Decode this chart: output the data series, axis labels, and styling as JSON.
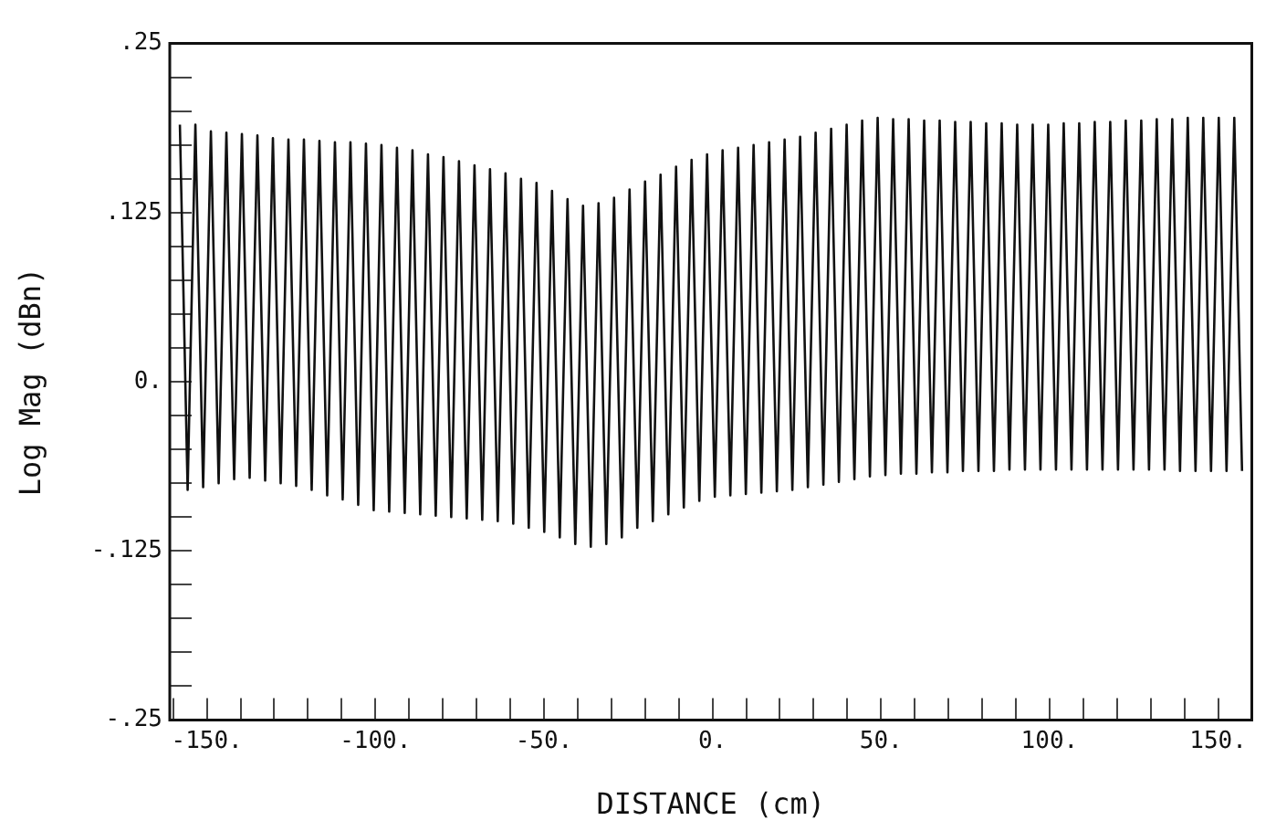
{
  "chart_data": {
    "type": "line",
    "xlabel": "DISTANCE (cm)",
    "ylabel": "Log Mag (dBn)",
    "xlim": [
      -161,
      160
    ],
    "ylim": [
      -0.25,
      0.25
    ],
    "xticks": [
      {
        "value": -160,
        "label": null
      },
      {
        "value": -150,
        "label": "-150."
      },
      {
        "value": -140,
        "label": null
      },
      {
        "value": -130,
        "label": null
      },
      {
        "value": -120,
        "label": null
      },
      {
        "value": -110,
        "label": null
      },
      {
        "value": -100,
        "label": "-100."
      },
      {
        "value": -90,
        "label": null
      },
      {
        "value": -80,
        "label": null
      },
      {
        "value": -70,
        "label": null
      },
      {
        "value": -60,
        "label": null
      },
      {
        "value": -50,
        "label": "-50."
      },
      {
        "value": -40,
        "label": null
      },
      {
        "value": -30,
        "label": null
      },
      {
        "value": -20,
        "label": null
      },
      {
        "value": -10,
        "label": null
      },
      {
        "value": 0,
        "label": "0."
      },
      {
        "value": 10,
        "label": null
      },
      {
        "value": 20,
        "label": null
      },
      {
        "value": 30,
        "label": null
      },
      {
        "value": 40,
        "label": null
      },
      {
        "value": 50,
        "label": "50."
      },
      {
        "value": 60,
        "label": null
      },
      {
        "value": 70,
        "label": null
      },
      {
        "value": 80,
        "label": null
      },
      {
        "value": 90,
        "label": null
      },
      {
        "value": 100,
        "label": "100."
      },
      {
        "value": 110,
        "label": null
      },
      {
        "value": 120,
        "label": null
      },
      {
        "value": 130,
        "label": null
      },
      {
        "value": 140,
        "label": null
      },
      {
        "value": 150,
        "label": "150."
      }
    ],
    "yticks": [
      {
        "value": -0.25,
        "label": "-.25"
      },
      {
        "value": -0.225,
        "label": null
      },
      {
        "value": -0.2,
        "label": null
      },
      {
        "value": -0.175,
        "label": null
      },
      {
        "value": -0.15,
        "label": null
      },
      {
        "value": -0.125,
        "label": "-.125"
      },
      {
        "value": -0.1,
        "label": null
      },
      {
        "value": -0.075,
        "label": null
      },
      {
        "value": -0.05,
        "label": null
      },
      {
        "value": -0.025,
        "label": null
      },
      {
        "value": 0,
        "label": "0."
      },
      {
        "value": 0.025,
        "label": null
      },
      {
        "value": 0.05,
        "label": null
      },
      {
        "value": 0.075,
        "label": null
      },
      {
        "value": 0.1,
        "label": null
      },
      {
        "value": 0.125,
        "label": ".125"
      },
      {
        "value": 0.15,
        "label": null
      },
      {
        "value": 0.175,
        "label": null
      },
      {
        "value": 0.2,
        "label": null
      },
      {
        "value": 0.225,
        "label": null
      },
      {
        "value": 0.25,
        "label": ".25"
      }
    ],
    "grid": false,
    "legend": false,
    "marker": "none",
    "line_style": "solid",
    "series": [
      {
        "color": "#111111",
        "x": [
          -158,
          -155.7,
          -153.4,
          -151.1,
          -148.8,
          -146.5,
          -144.2,
          -141.9,
          -139.6,
          -137.3,
          -135,
          -132.7,
          -130.4,
          -128.1,
          -125.8,
          -123.5,
          -121.2,
          -118.9,
          -116.6,
          -114.3,
          -112,
          -109.7,
          -107.4,
          -105.1,
          -102.8,
          -100.5,
          -98.2,
          -95.9,
          -93.6,
          -91.3,
          -89,
          -86.7,
          -84.4,
          -82.1,
          -79.8,
          -77.5,
          -75.2,
          -72.9,
          -70.6,
          -68.3,
          -66,
          -63.7,
          -61.4,
          -59.1,
          -56.8,
          -54.5,
          -52.2,
          -49.9,
          -47.6,
          -45.3,
          -43,
          -40.7,
          -38.4,
          -36.1,
          -33.8,
          -31.5,
          -29.2,
          -26.9,
          -24.6,
          -22.3,
          -20,
          -17.7,
          -15.4,
          -13.1,
          -10.8,
          -8.5,
          -6.2,
          -3.9,
          -1.6,
          0.7,
          3,
          5.3,
          7.6,
          9.9,
          12.2,
          14.5,
          16.8,
          19.1,
          21.4,
          23.7,
          26,
          28.3,
          30.6,
          32.9,
          35.2,
          37.5,
          39.8,
          42.1,
          44.4,
          46.7,
          49,
          51.3,
          53.6,
          55.9,
          58.2,
          60.5,
          62.8,
          65.1,
          67.4,
          69.7,
          72,
          74.3,
          76.6,
          78.9,
          81.2,
          83.5,
          85.8,
          88.1,
          90.4,
          92.7,
          95,
          97.3,
          99.6,
          101.9,
          104.2,
          106.5,
          108.8,
          111.1,
          113.4,
          115.7,
          118,
          120.3,
          122.6,
          124.9,
          127.2,
          129.5,
          131.8,
          134.1,
          136.4,
          138.7,
          141,
          143.3,
          145.6,
          147.9,
          150.2,
          152.5,
          154.8,
          157.1
        ],
        "values": [
          0.19,
          -0.08,
          0.19,
          -0.078,
          0.185,
          -0.075,
          0.184,
          -0.072,
          0.183,
          -0.071,
          0.182,
          -0.073,
          0.18,
          -0.075,
          0.179,
          -0.077,
          0.179,
          -0.08,
          0.178,
          -0.084,
          0.177,
          -0.087,
          0.177,
          -0.091,
          0.176,
          -0.095,
          0.175,
          -0.096,
          0.173,
          -0.097,
          0.171,
          -0.098,
          0.168,
          -0.099,
          0.166,
          -0.1,
          0.163,
          -0.101,
          0.16,
          -0.102,
          0.157,
          -0.103,
          0.154,
          -0.105,
          0.15,
          -0.108,
          0.147,
          -0.111,
          0.141,
          -0.115,
          0.135,
          -0.12,
          0.13,
          -0.122,
          0.132,
          -0.12,
          0.136,
          -0.115,
          0.142,
          -0.108,
          0.148,
          -0.103,
          0.153,
          -0.098,
          0.159,
          -0.093,
          0.164,
          -0.088,
          0.168,
          -0.085,
          0.171,
          -0.084,
          0.173,
          -0.083,
          0.175,
          -0.082,
          0.177,
          -0.081,
          0.179,
          -0.08,
          0.181,
          -0.078,
          0.184,
          -0.076,
          0.187,
          -0.074,
          0.19,
          -0.072,
          0.193,
          -0.07,
          0.195,
          -0.069,
          0.194,
          -0.068,
          0.194,
          -0.068,
          0.193,
          -0.067,
          0.193,
          -0.067,
          0.192,
          -0.066,
          0.192,
          -0.066,
          0.191,
          -0.066,
          0.191,
          -0.065,
          0.19,
          -0.065,
          0.19,
          -0.065,
          0.19,
          -0.065,
          0.191,
          -0.065,
          0.191,
          -0.065,
          0.192,
          -0.065,
          0.192,
          -0.065,
          0.193,
          -0.065,
          0.193,
          -0.065,
          0.194,
          -0.065,
          0.194,
          -0.066,
          0.195,
          -0.066,
          0.195,
          -0.066,
          0.195,
          -0.066,
          0.195,
          -0.066
        ]
      }
    ]
  }
}
